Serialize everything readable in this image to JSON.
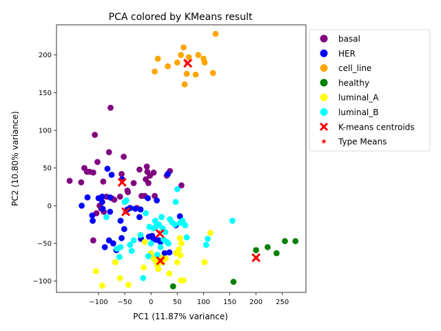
{
  "chart_data": {
    "type": "scatter",
    "title": "PCA colored by KMeans result",
    "xlabel": "PC1 (11.87% variance)",
    "ylabel": "PC2 (10.80% variance)",
    "xlim": [
      -180,
      295
    ],
    "ylim": [
      -115,
      240
    ],
    "x_ticks": [
      -100,
      -50,
      0,
      50,
      100,
      150,
      200,
      250
    ],
    "y_ticks": [
      -100,
      -50,
      0,
      50,
      100,
      150,
      200
    ],
    "grid": false,
    "legend_position": "right, outside plot",
    "series": [
      {
        "name": "basal",
        "color": "#800080",
        "marker": "circle",
        "points": [
          [
            -155,
            33
          ],
          [
            -133,
            31
          ],
          [
            -127,
            50
          ],
          [
            -122,
            45
          ],
          [
            -117,
            45
          ],
          [
            -110,
            44
          ],
          [
            -107,
            94
          ],
          [
            -102,
            58
          ],
          [
            -98,
            0
          ],
          [
            -94,
            -4
          ],
          [
            -91,
            32
          ],
          [
            -85,
            12
          ],
          [
            -80,
            71
          ],
          [
            -77,
            130
          ],
          [
            -75,
            10
          ],
          [
            -70,
            8
          ],
          [
            -59,
            12
          ],
          [
            -56,
            42
          ],
          [
            -52,
            65
          ],
          [
            -50,
            5
          ],
          [
            -45,
            20
          ],
          [
            -44,
            18
          ],
          [
            -40,
            -3
          ],
          [
            -33,
            30
          ],
          [
            -27,
            -3
          ],
          [
            -22,
            48
          ],
          [
            -18,
            13
          ],
          [
            -12,
            13
          ],
          [
            -10,
            35
          ],
          [
            -8,
            52
          ],
          [
            -7,
            45
          ],
          [
            -5,
            30
          ],
          [
            -2,
            40
          ],
          [
            5,
            44
          ],
          [
            7,
            13
          ],
          [
            30,
            40
          ],
          [
            36,
            46
          ],
          [
            58,
            27
          ],
          [
            -110,
            -46
          ],
          [
            -104,
            -10
          ],
          [
            -95,
            -4
          ],
          [
            -90,
            -8
          ]
        ]
      },
      {
        "name": "HER",
        "color": "#0000ff",
        "marker": "circle",
        "points": [
          [
            -132,
            0
          ],
          [
            -121,
            11
          ],
          [
            -112,
            -13
          ],
          [
            -111,
            -20
          ],
          [
            -100,
            10
          ],
          [
            -93,
            12
          ],
          [
            -93,
            5
          ],
          [
            -92,
            -4
          ],
          [
            -88,
            -55
          ],
          [
            -83,
            49
          ],
          [
            -80,
            -46
          ],
          [
            -78,
            -8
          ],
          [
            -78,
            11
          ],
          [
            -75,
            41
          ],
          [
            -72,
            -50
          ],
          [
            -66,
            -59
          ],
          [
            -58,
            -20
          ],
          [
            -56,
            -43
          ],
          [
            -55,
            35
          ],
          [
            -51,
            -31
          ],
          [
            -45,
            -5
          ],
          [
            -40,
            -3
          ],
          [
            -30,
            -4
          ],
          [
            -22,
            -15
          ],
          [
            -20,
            -5
          ],
          [
            -19,
            -44
          ],
          [
            -6,
            10
          ],
          [
            -4,
            -41
          ],
          [
            2,
            -40
          ],
          [
            5,
            -44
          ],
          [
            9,
            -45
          ],
          [
            11,
            7
          ],
          [
            15,
            -46
          ],
          [
            18,
            -48
          ],
          [
            26,
            -63
          ],
          [
            32,
            42
          ],
          [
            35,
            -62
          ],
          [
            47,
            -26
          ],
          [
            55,
            -14
          ]
        ]
      },
      {
        "name": "cell_line",
        "color": "#ffa500",
        "marker": "circle",
        "points": [
          [
            7,
            178
          ],
          [
            13,
            195
          ],
          [
            32,
            185
          ],
          [
            50,
            190
          ],
          [
            57,
            200
          ],
          [
            62,
            210
          ],
          [
            64,
            161
          ],
          [
            68,
            175
          ],
          [
            72,
            197
          ],
          [
            85,
            174
          ],
          [
            90,
            200
          ],
          [
            100,
            195
          ],
          [
            102,
            190
          ],
          [
            118,
            176
          ],
          [
            123,
            228
          ]
        ]
      },
      {
        "name": "healthy",
        "color": "#008000",
        "marker": "circle",
        "points": [
          [
            42,
            -107
          ],
          [
            157,
            -101
          ],
          [
            200,
            -59
          ],
          [
            222,
            -55
          ],
          [
            239,
            -63
          ],
          [
            255,
            -47
          ],
          [
            275,
            -47
          ]
        ]
      },
      {
        "name": "luminal_A",
        "color": "#ffff00",
        "marker": "circle",
        "points": [
          [
            -105,
            -87
          ],
          [
            -93,
            -106
          ],
          [
            -68,
            -75
          ],
          [
            -59,
            -96
          ],
          [
            -43,
            -105
          ],
          [
            -14,
            -82
          ],
          [
            -12,
            -48
          ],
          [
            0,
            -63
          ],
          [
            5,
            -70
          ],
          [
            8,
            -72
          ],
          [
            10,
            -74
          ],
          [
            12,
            -79
          ],
          [
            14,
            -84
          ],
          [
            18,
            -68
          ],
          [
            22,
            -75
          ],
          [
            28,
            -70
          ],
          [
            35,
            -90
          ],
          [
            48,
            -63
          ],
          [
            50,
            -75
          ],
          [
            53,
            -58
          ],
          [
            55,
            -43
          ],
          [
            56,
            -66
          ],
          [
            57,
            -99
          ],
          [
            58,
            -50
          ],
          [
            62,
            -99
          ],
          [
            102,
            -75
          ],
          [
            113,
            -36
          ]
        ]
      },
      {
        "name": "luminal_B",
        "color": "#00ffff",
        "marker": "circle",
        "points": [
          [
            -85,
            -15
          ],
          [
            -65,
            -57
          ],
          [
            -60,
            -68
          ],
          [
            -58,
            -55
          ],
          [
            -50,
            5
          ],
          [
            -47,
            7
          ],
          [
            -40,
            -52
          ],
          [
            -37,
            -60
          ],
          [
            -33,
            -46
          ],
          [
            -20,
            -39
          ],
          [
            -15,
            -96
          ],
          [
            -10,
            -10
          ],
          [
            -5,
            -67
          ],
          [
            -3,
            -28
          ],
          [
            0,
            -50
          ],
          [
            5,
            -30
          ],
          [
            8,
            -20
          ],
          [
            10,
            -27
          ],
          [
            12,
            -65
          ],
          [
            15,
            -25
          ],
          [
            18,
            -55
          ],
          [
            20,
            -15
          ],
          [
            22,
            -30
          ],
          [
            24,
            -45
          ],
          [
            27,
            -35
          ],
          [
            30,
            -48
          ],
          [
            33,
            -50
          ],
          [
            36,
            -18
          ],
          [
            40,
            -22
          ],
          [
            45,
            -25
          ],
          [
            47,
            5
          ],
          [
            50,
            22
          ],
          [
            55,
            -23
          ],
          [
            60,
            -20
          ],
          [
            65,
            -26
          ],
          [
            68,
            -42
          ],
          [
            105,
            -52
          ],
          [
            108,
            -44
          ],
          [
            155,
            -20
          ]
        ]
      }
    ],
    "centroids": {
      "name": "K-means centroids",
      "color": "#ff0000",
      "marker": "x",
      "points": [
        [
          -55,
          31
        ],
        [
          -48,
          -8
        ],
        [
          17,
          -37
        ],
        [
          18,
          -73
        ],
        [
          70,
          189
        ],
        [
          200,
          -69
        ]
      ]
    },
    "type_means": {
      "name": "Type Means",
      "color": "#ff0000",
      "marker": "star",
      "points": [
        [
          -56,
          33
        ],
        [
          -50,
          -9
        ],
        [
          16,
          -36
        ],
        [
          18,
          -73
        ],
        [
          68,
          190
        ],
        [
          200,
          -70
        ]
      ]
    }
  }
}
